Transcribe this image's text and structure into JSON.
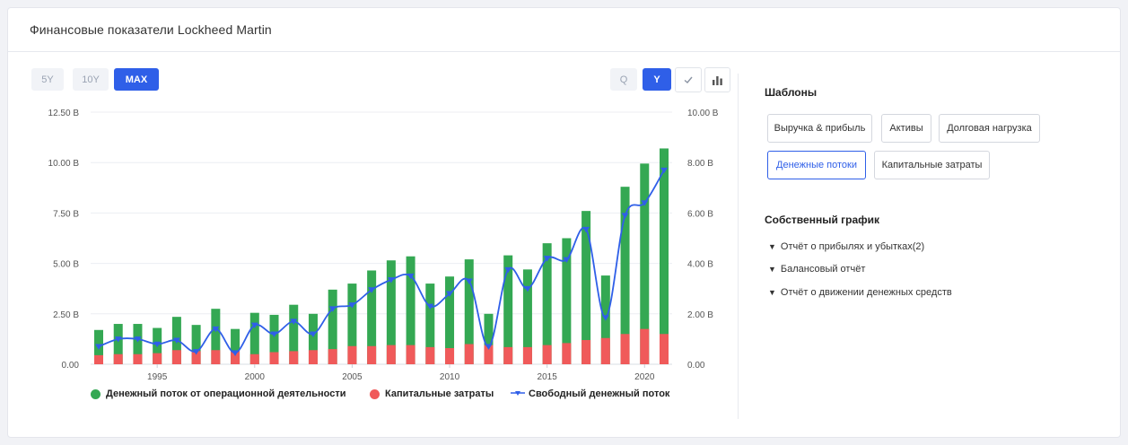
{
  "header": {
    "title": "Финансовые показатели Lockheed Martin"
  },
  "range_buttons": [
    {
      "label": "5Y",
      "active": false
    },
    {
      "label": "10Y",
      "active": false
    },
    {
      "label": "MAX",
      "active": true
    }
  ],
  "period_buttons": [
    {
      "label": "Q",
      "active": false
    },
    {
      "label": "Y",
      "active": true
    }
  ],
  "icons": {
    "check": "check-icon",
    "bar_chart": "bar-chart-icon",
    "chevron": "chevron-down-icon"
  },
  "colors": {
    "accent": "#2f5fe8",
    "operating": "#34a853",
    "capex": "#f05a5a",
    "fcf": "#2f5fe8"
  },
  "sidebar": {
    "templates_title": "Шаблоны",
    "templates": [
      {
        "label": "Выручка & прибыль",
        "selected": false
      },
      {
        "label": "Активы",
        "selected": false
      },
      {
        "label": "Долговая нагрузка",
        "selected": false
      },
      {
        "label": "Денежные потоки",
        "selected": true
      },
      {
        "label": "Капитальные затраты",
        "selected": false
      }
    ],
    "custom_title": "Собственный график",
    "custom_items": [
      {
        "label": "Отчёт о прибылях и убытках(2)"
      },
      {
        "label": "Балансовый отчёт"
      },
      {
        "label": "Отчёт о движении денежных средств"
      }
    ]
  },
  "legend": [
    {
      "label": "Денежный поток от операционной деятельности",
      "marker": "dot"
    },
    {
      "label": "Капитальные затраты",
      "marker": "dot"
    },
    {
      "label": "Свободный денежный поток",
      "marker": "line-triangle"
    }
  ],
  "chart_data": {
    "type": "bar",
    "title": "",
    "x": [
      1992,
      1993,
      1994,
      1995,
      1996,
      1997,
      1998,
      1999,
      2000,
      2001,
      2002,
      2003,
      2004,
      2005,
      2006,
      2007,
      2008,
      2009,
      2010,
      2011,
      2012,
      2013,
      2014,
      2015,
      2016,
      2017,
      2018,
      2019,
      2020,
      2021
    ],
    "x_tick_labels": [
      "1995",
      "2000",
      "2005",
      "2010",
      "2015",
      "2020"
    ],
    "x_ticks": [
      1995,
      2000,
      2005,
      2010,
      2015,
      2020
    ],
    "left_axis": {
      "ylim": [
        0,
        12.5
      ],
      "ticks": [
        "0.00",
        "2.50 B",
        "5.00 B",
        "7.50 B",
        "10.00 B",
        "12.50 B"
      ],
      "tick_values": [
        0,
        2.5,
        5,
        7.5,
        10,
        12.5
      ]
    },
    "right_axis": {
      "ylim": [
        0,
        10
      ],
      "ticks": [
        "0.00",
        "2.00 B",
        "4.00 B",
        "6.00 B",
        "8.00 B",
        "10.00 B"
      ],
      "tick_values": [
        0,
        2,
        4,
        6,
        8,
        10
      ]
    },
    "grid": true,
    "legend_position": "bottom",
    "series": [
      {
        "name": "Денежный поток от операционной деятельности",
        "kind": "bar",
        "axis": "left",
        "values": [
          1.7,
          2.0,
          2.0,
          1.8,
          2.35,
          1.95,
          2.75,
          1.75,
          2.55,
          2.45,
          2.95,
          2.5,
          3.7,
          4.0,
          4.65,
          5.15,
          5.35,
          4.0,
          4.35,
          5.2,
          2.5,
          5.4,
          4.7,
          6.0,
          6.25,
          7.6,
          4.4,
          8.8,
          9.95,
          10.7
        ]
      },
      {
        "name": "Капитальные затраты",
        "kind": "bar",
        "axis": "left",
        "values": [
          0.45,
          0.5,
          0.5,
          0.55,
          0.7,
          0.65,
          0.7,
          0.65,
          0.5,
          0.6,
          0.65,
          0.7,
          0.75,
          0.9,
          0.9,
          0.95,
          0.95,
          0.85,
          0.8,
          1.0,
          0.95,
          0.85,
          0.85,
          0.95,
          1.05,
          1.2,
          1.3,
          1.5,
          1.75,
          1.5
        ]
      },
      {
        "name": "Свободный денежный поток",
        "kind": "line",
        "axis": "right",
        "values": [
          0.7,
          1.0,
          1.0,
          0.8,
          0.95,
          0.5,
          1.4,
          0.45,
          1.55,
          1.2,
          1.7,
          1.2,
          2.2,
          2.35,
          2.95,
          3.35,
          3.5,
          2.3,
          2.8,
          3.3,
          0.7,
          3.75,
          3.0,
          4.2,
          4.15,
          5.35,
          1.85,
          5.9,
          6.4,
          7.7
        ]
      }
    ]
  }
}
